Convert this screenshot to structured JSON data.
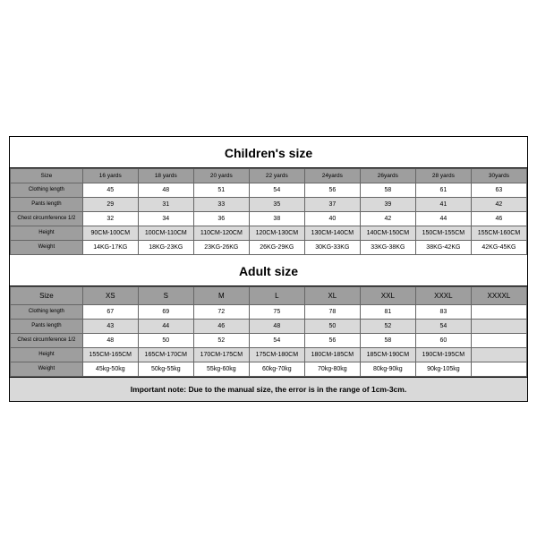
{
  "children": {
    "title": "Children's size",
    "headers": [
      "Size",
      "16 yards",
      "18 yards",
      "20 yards",
      "22 yards",
      "24yards",
      "26yards",
      "28 yards",
      "30yards"
    ],
    "rows": [
      {
        "label": "Clothing length",
        "cells": [
          "45",
          "48",
          "51",
          "54",
          "56",
          "58",
          "61",
          "63"
        ]
      },
      {
        "label": "Pants length",
        "cells": [
          "29",
          "31",
          "33",
          "35",
          "37",
          "39",
          "41",
          "42"
        ]
      },
      {
        "label": "Chest circumference 1/2",
        "cells": [
          "32",
          "34",
          "36",
          "38",
          "40",
          "42",
          "44",
          "46"
        ]
      },
      {
        "label": "Height",
        "cells": [
          "90CM-100CM",
          "100CM-110CM",
          "110CM-120CM",
          "120CM-130CM",
          "130CM-140CM",
          "140CM-150CM",
          "150CM-155CM",
          "155CM-160CM"
        ]
      },
      {
        "label": "Weight",
        "cells": [
          "14KG-17KG",
          "18KG-23KG",
          "23KG-26KG",
          "26KG-29KG",
          "30KG-33KG",
          "33KG-38KG",
          "38KG-42KG",
          "42KG-45KG"
        ]
      }
    ],
    "alt_rows": [
      false,
      true,
      false,
      true,
      false
    ]
  },
  "adult": {
    "title": "Adult size",
    "headers": [
      "Size",
      "XS",
      "S",
      "M",
      "L",
      "XL",
      "XXL",
      "XXXL",
      "XXXXL"
    ],
    "rows": [
      {
        "label": "Clothing length",
        "cells": [
          "67",
          "69",
          "72",
          "75",
          "78",
          "81",
          "83",
          ""
        ]
      },
      {
        "label": "Pants length",
        "cells": [
          "43",
          "44",
          "46",
          "48",
          "50",
          "52",
          "54",
          ""
        ]
      },
      {
        "label": "Chest circumference 1/2",
        "cells": [
          "48",
          "50",
          "52",
          "54",
          "56",
          "58",
          "60",
          ""
        ]
      },
      {
        "label": "Height",
        "cells": [
          "155CM-165CM",
          "165CM-170CM",
          "170CM-175CM",
          "175CM-180CM",
          "180CM-185CM",
          "185CM-190CM",
          "190CM-195CM",
          ""
        ]
      },
      {
        "label": "Weight",
        "cells": [
          "45kg-50kg",
          "50kg-55kg",
          "55kg-60kg",
          "60kg-70kg",
          "70kg-80kg",
          "80kg-90kg",
          "90kg-105kg",
          ""
        ]
      }
    ],
    "alt_rows": [
      false,
      true,
      false,
      true,
      false
    ]
  },
  "note": "Important note: Due to the manual size, the error is in the range of 1cm-3cm."
}
